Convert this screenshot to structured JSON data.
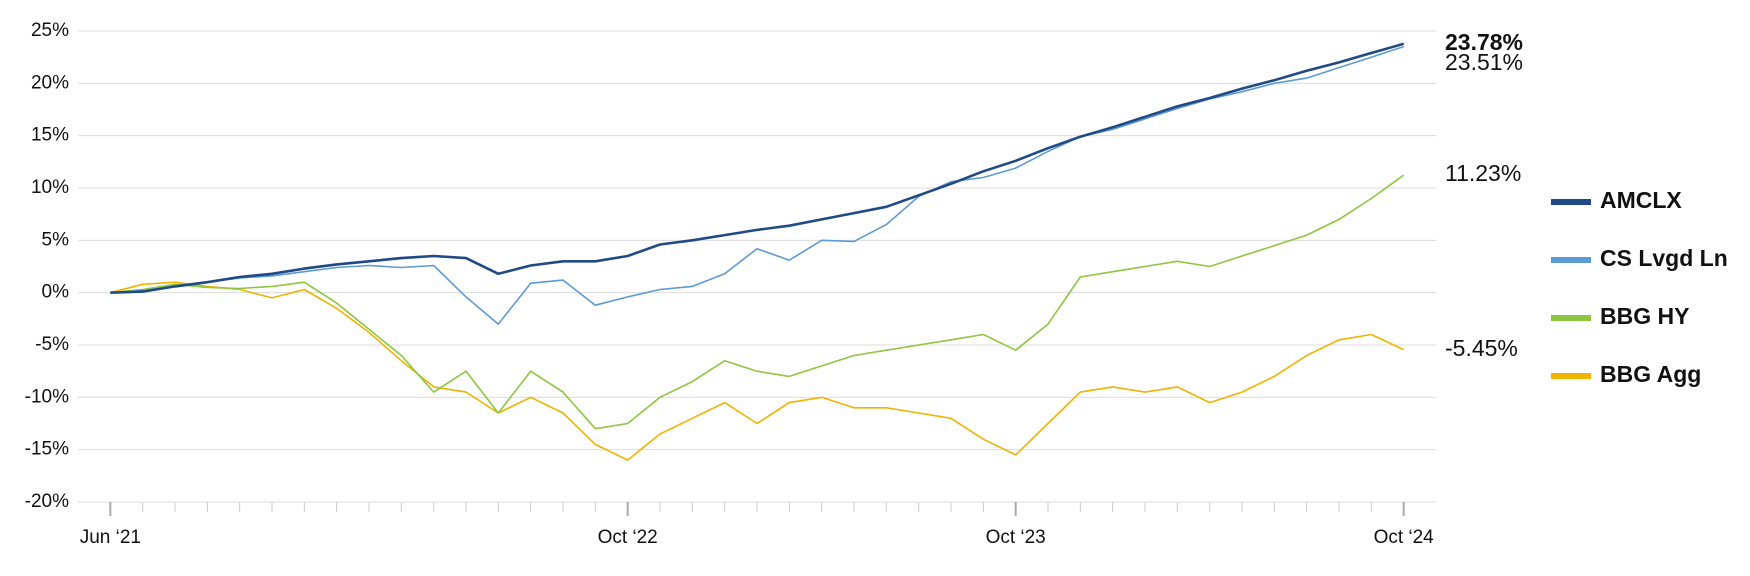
{
  "chart_data": {
    "type": "line",
    "x": [
      "2021-06",
      "2021-07",
      "2021-08",
      "2021-09",
      "2021-10",
      "2021-11",
      "2021-12",
      "2022-01",
      "2022-02",
      "2022-03",
      "2022-04",
      "2022-05",
      "2022-06",
      "2022-07",
      "2022-08",
      "2022-09",
      "2022-10",
      "2022-11",
      "2022-12",
      "2023-01",
      "2023-02",
      "2023-03",
      "2023-04",
      "2023-05",
      "2023-06",
      "2023-07",
      "2023-08",
      "2023-09",
      "2023-10",
      "2023-11",
      "2023-12",
      "2024-01",
      "2024-02",
      "2024-03",
      "2024-04",
      "2024-05",
      "2024-06",
      "2024-07",
      "2024-08",
      "2024-09",
      "2024-10"
    ],
    "series": [
      {
        "name": "AMCLX",
        "color": "#1f4a85",
        "values": [
          0,
          0.1,
          0.6,
          1.0,
          1.5,
          1.8,
          2.3,
          2.7,
          3.0,
          3.3,
          3.5,
          3.3,
          1.8,
          2.6,
          3.0,
          3.0,
          3.5,
          4.6,
          5.0,
          5.5,
          6.0,
          6.4,
          7.0,
          7.6,
          8.2,
          9.3,
          10.4,
          11.6,
          12.6,
          13.8,
          14.9,
          15.8,
          16.8,
          17.8,
          18.6,
          19.5,
          20.3,
          21.2,
          22.0,
          22.9,
          23.78
        ],
        "value_labels": [
          null,
          null,
          null,
          null,
          null,
          null,
          null,
          null,
          null,
          null,
          null,
          null,
          null,
          null,
          null,
          null,
          null,
          null,
          null,
          null,
          null,
          null,
          null,
          null,
          null,
          null,
          null,
          null,
          null,
          null,
          null,
          null,
          null,
          null,
          null,
          null,
          null,
          null,
          null,
          null,
          "23.78%"
        ]
      },
      {
        "name": "CS Lvgd Ln",
        "color": "#5b9bd5",
        "values": [
          0,
          0.2,
          0.6,
          1.0,
          1.4,
          1.6,
          2.0,
          2.4,
          2.6,
          2.4,
          2.6,
          -0.4,
          -3.0,
          0.9,
          1.2,
          -1.2,
          -0.4,
          0.3,
          0.6,
          1.8,
          4.2,
          3.1,
          5.0,
          4.9,
          6.5,
          9.2,
          10.6,
          11.0,
          11.9,
          13.5,
          14.9,
          15.6,
          16.6,
          17.6,
          18.5,
          19.2,
          20.0,
          20.5,
          21.5,
          22.5,
          23.51
        ],
        "value_labels": [
          null,
          null,
          null,
          null,
          null,
          null,
          null,
          null,
          null,
          null,
          null,
          null,
          null,
          null,
          null,
          null,
          null,
          null,
          null,
          null,
          null,
          null,
          null,
          null,
          null,
          null,
          null,
          null,
          null,
          null,
          null,
          null,
          null,
          null,
          null,
          null,
          null,
          null,
          null,
          null,
          "23.51%"
        ]
      },
      {
        "name": "BBG HY",
        "color": "#8dc63f",
        "values": [
          0,
          0.3,
          0.8,
          0.5,
          0.4,
          0.6,
          1.0,
          -1.0,
          -3.5,
          -6.0,
          -9.5,
          -7.5,
          -11.5,
          -7.5,
          -9.5,
          -13.0,
          -12.5,
          -10.0,
          -8.5,
          -6.5,
          -7.5,
          -8.0,
          -7.0,
          -6.0,
          -5.5,
          -5.0,
          -4.5,
          -4.0,
          -5.5,
          -3.0,
          1.5,
          2.0,
          2.5,
          3.0,
          2.5,
          3.5,
          4.5,
          5.5,
          7.0,
          9.0,
          11.23
        ],
        "value_labels": [
          null,
          null,
          null,
          null,
          null,
          null,
          null,
          null,
          null,
          null,
          null,
          null,
          null,
          null,
          null,
          null,
          null,
          null,
          null,
          null,
          null,
          null,
          null,
          null,
          null,
          null,
          null,
          null,
          null,
          null,
          null,
          null,
          null,
          null,
          null,
          null,
          null,
          null,
          null,
          null,
          "11.23%"
        ]
      },
      {
        "name": "BBG Agg",
        "color": "#f2b300",
        "values": [
          0,
          0.8,
          1.0,
          0.6,
          0.3,
          -0.5,
          0.3,
          -1.5,
          -3.8,
          -6.5,
          -9.0,
          -9.5,
          -11.5,
          -10.0,
          -11.5,
          -14.5,
          -16.0,
          -13.5,
          -12.0,
          -10.5,
          -12.5,
          -10.5,
          -10.0,
          -11.0,
          -11.0,
          -11.5,
          -12.0,
          -14.0,
          -15.5,
          -12.5,
          -9.5,
          -9.0,
          -9.5,
          -9.0,
          -10.5,
          -9.5,
          -8.0,
          -6.0,
          -4.5,
          -4.0,
          -5.45
        ],
        "value_labels": [
          null,
          null,
          null,
          null,
          null,
          null,
          null,
          null,
          null,
          null,
          null,
          null,
          null,
          null,
          null,
          null,
          null,
          null,
          null,
          null,
          null,
          null,
          null,
          null,
          null,
          null,
          null,
          null,
          null,
          null,
          null,
          null,
          null,
          null,
          null,
          null,
          null,
          null,
          null,
          null,
          "-5.45%"
        ]
      }
    ],
    "xlim": [
      "2021-05",
      "2024-11"
    ],
    "xticks": [
      {
        "value": "2021-06",
        "label": "Jun ‘21"
      },
      {
        "value": "2022-10",
        "label": "Oct ‘22"
      },
      {
        "value": "2023-10",
        "label": "Oct ‘23"
      },
      {
        "value": "2024-10",
        "label": "Oct ‘24"
      }
    ],
    "ylim": [
      -20,
      25
    ],
    "yticks": [
      {
        "value": -20,
        "label": "-20%"
      },
      {
        "value": -15,
        "label": "-15%"
      },
      {
        "value": -10,
        "label": "-10%"
      },
      {
        "value": -5,
        "label": "-5%"
      },
      {
        "value": 0,
        "label": "0%"
      },
      {
        "value": 5,
        "label": "5%"
      },
      {
        "value": 10,
        "label": "10%"
      },
      {
        "value": 15,
        "label": "15%"
      },
      {
        "value": 20,
        "label": "20%"
      },
      {
        "value": 25,
        "label": "25%"
      }
    ],
    "grid": true
  }
}
